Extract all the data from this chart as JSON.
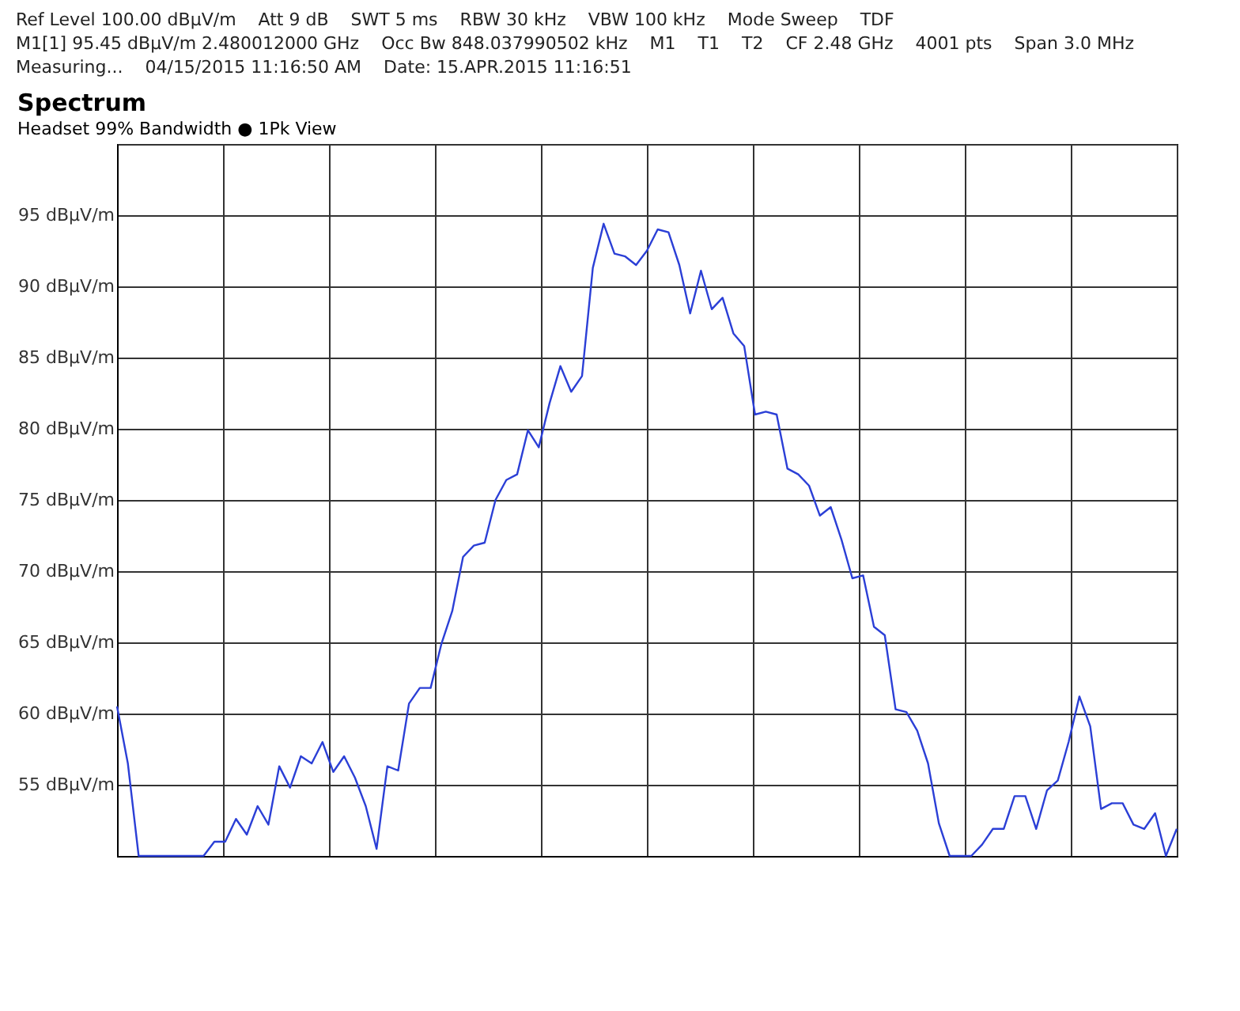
{
  "chart_data": {
    "type": "line",
    "title": "Spectrum",
    "subtitle": "Headset 99% Bandwidth ● 1Pk View",
    "categories": [
      null,
      null,
      null,
      null,
      null,
      null,
      null,
      null,
      null,
      null,
      null,
      null,
      null,
      null,
      null,
      null,
      null,
      null,
      null,
      null,
      null,
      null,
      null,
      null,
      null,
      null,
      null,
      null,
      null,
      null,
      null,
      null,
      null,
      null,
      null,
      null,
      null,
      null,
      null,
      null,
      null,
      null,
      null,
      null,
      null,
      null,
      null,
      null,
      null,
      null,
      null,
      null,
      null,
      null,
      null,
      null,
      null,
      null,
      null,
      null,
      null,
      null,
      null,
      null,
      null,
      null,
      null,
      null,
      null,
      null,
      null,
      null,
      null,
      null,
      null,
      null,
      null,
      null,
      null,
      null,
      null,
      null,
      null,
      null,
      null,
      null,
      null,
      null,
      null,
      null,
      null,
      null,
      null,
      null,
      null,
      null,
      null,
      null,
      null
    ],
    "series": [
      {
        "color": "#2b3fd6",
        "values": [
          60.5,
          56.5,
          50,
          50,
          50,
          50,
          50,
          50,
          50,
          51,
          51,
          52.6,
          51.5,
          53.5,
          52.2,
          56.3,
          54.8,
          57,
          56.5,
          58,
          55.9,
          57,
          55.5,
          53.5,
          50.5,
          56.3,
          56,
          60.7,
          61.8,
          61.8,
          64.9,
          67.2,
          71,
          71.8,
          72,
          75,
          76.4,
          76.8,
          79.9,
          78.7,
          81.8,
          84.4,
          82.6,
          83.7,
          91.3,
          94.4,
          92.3,
          92.1,
          91.5,
          92.5,
          94,
          93.8,
          91.5,
          88.1,
          91.1,
          88.4,
          89.2,
          86.7,
          85.8,
          81,
          81.2,
          81,
          77.2,
          76.8,
          76,
          73.9,
          74.5,
          72.2,
          69.5,
          69.7,
          66.1,
          65.5,
          60.3,
          60.1,
          58.8,
          56.5,
          52.3,
          50,
          50,
          50,
          50.8,
          51.9,
          51.9,
          54.2,
          54.2,
          51.9,
          54.6,
          55.3,
          58,
          61.2,
          59.1,
          53.3,
          53.7,
          53.7,
          52.2,
          51.9,
          53,
          50,
          51.9
        ]
      }
    ],
    "ylim": [
      50,
      100
    ],
    "yticks": [
      {
        "value": 50,
        "label": null
      },
      {
        "value": 55,
        "label": "55 dBµV/m"
      },
      {
        "value": 60,
        "label": "60 dBµV/m"
      },
      {
        "value": 65,
        "label": "65 dBµV/m"
      },
      {
        "value": 70,
        "label": "70 dBµV/m"
      },
      {
        "value": 75,
        "label": "75 dBµV/m"
      },
      {
        "value": 80,
        "label": "80 dBµV/m"
      },
      {
        "value": 85,
        "label": "85 dBµV/m"
      },
      {
        "value": 90,
        "label": "90 dBµV/m"
      },
      {
        "value": 95,
        "label": "95 dBµV/m"
      },
      {
        "value": 100,
        "label": null
      }
    ],
    "tick_labels": "y",
    "grid": true,
    "line_style": "solid",
    "marker": "none",
    "annotations": [
      "Ref Level 100.00 dBµV/m",
      "Att 9 dB",
      "SWT 5 ms",
      "RBW 30 kHz",
      "VBW 100 kHz",
      "Mode Sweep",
      "TDF",
      "M1[1] 95.45 dBµV/m 2.480012000 GHz",
      "Occ Bw 848.037990502 kHz",
      "M1",
      "T1",
      "T2",
      "CF 2.48 GHz",
      "4001 pts",
      "Span 3.0 MHz",
      "Measuring...",
      "04/15/2015 11:16:50 AM",
      "Date: 15.APR.2015  11:16:51"
    ]
  }
}
